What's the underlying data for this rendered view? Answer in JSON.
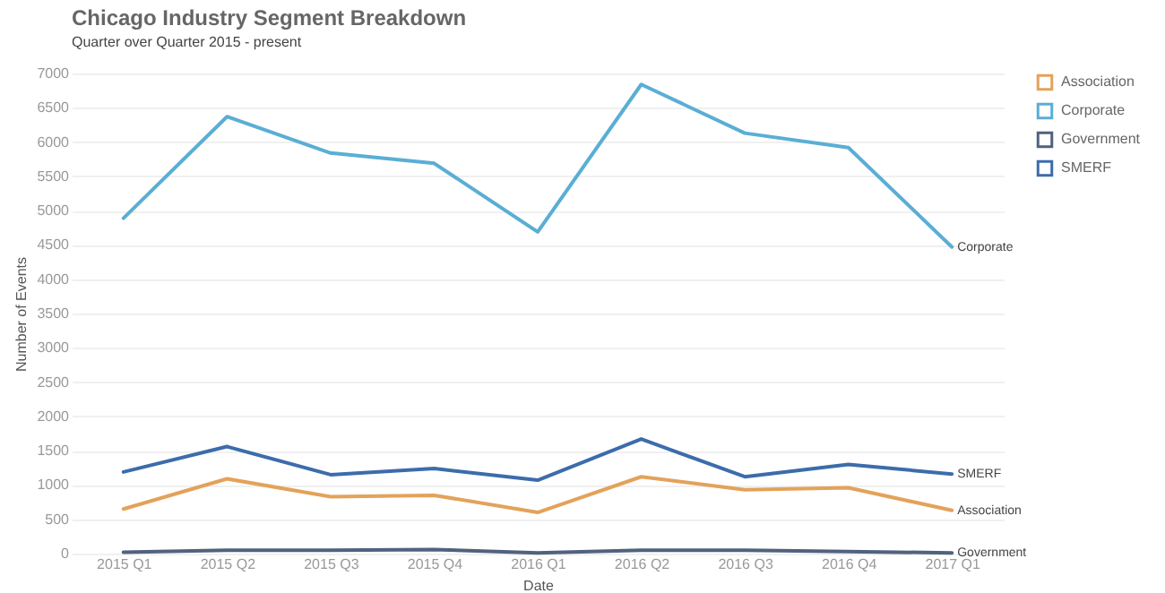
{
  "chart_data": {
    "type": "line",
    "title": "Chicago Industry Segment Breakdown",
    "subtitle": "Quarter over Quarter 2015 - present",
    "xlabel": "Date",
    "ylabel": "Number of Events",
    "categories": [
      "2015 Q1",
      "2015 Q2",
      "2015 Q3",
      "2015 Q4",
      "2016 Q1",
      "2016 Q2",
      "2016 Q3",
      "2016 Q4",
      "2017 Q1"
    ],
    "series": [
      {
        "name": "Association",
        "color": "#e3a25a",
        "values": [
          650,
          1090,
          830,
          850,
          600,
          1120,
          930,
          960,
          630
        ]
      },
      {
        "name": "Corporate",
        "color": "#5aaed4",
        "values": [
          4890,
          6370,
          5840,
          5690,
          4690,
          6840,
          6130,
          5920,
          4470
        ]
      },
      {
        "name": "Government",
        "color": "#50627e",
        "values": [
          20,
          50,
          50,
          60,
          10,
          50,
          50,
          30,
          10
        ]
      },
      {
        "name": "SMERF",
        "color": "#3c6cab",
        "values": [
          1190,
          1560,
          1150,
          1240,
          1070,
          1670,
          1120,
          1300,
          1160
        ]
      }
    ],
    "ylim": [
      0,
      7000
    ],
    "yticks": [
      0,
      500,
      1000,
      1500,
      2000,
      2500,
      3000,
      3500,
      4000,
      4500,
      5000,
      5500,
      6000,
      6500,
      7000
    ],
    "grid": "y",
    "legend": "top right",
    "marker": "none",
    "line_style": "solid"
  }
}
